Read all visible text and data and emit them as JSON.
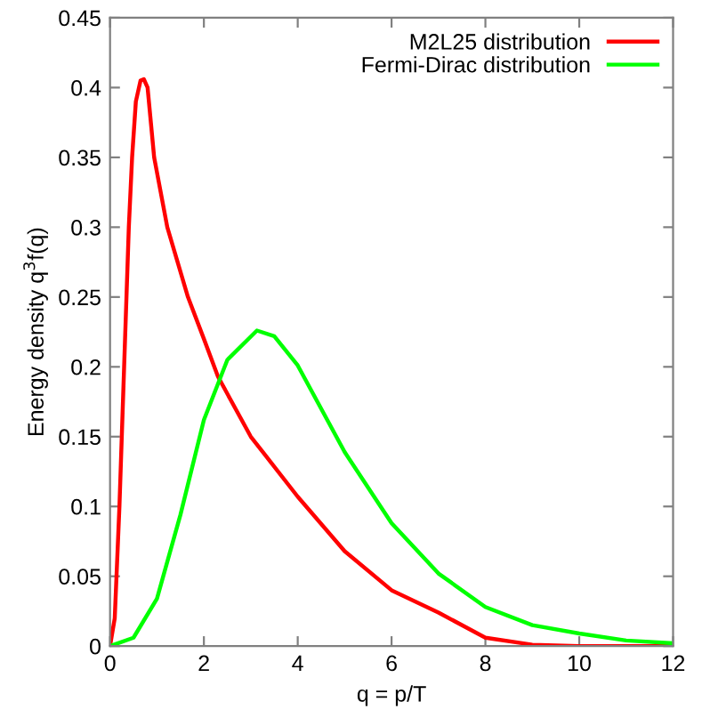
{
  "chart_data": {
    "type": "line",
    "xlabel": "q = p/T",
    "ylabel": "Energy density q$^{3}$f(q)",
    "xlim": [
      0,
      12
    ],
    "ylim": [
      0,
      0.45
    ],
    "xticks": [
      0,
      2,
      4,
      6,
      8,
      10,
      12
    ],
    "yticks": [
      0,
      0.05,
      0.1,
      0.15,
      0.2,
      0.25,
      0.3,
      0.35,
      0.4,
      0.45
    ],
    "legend": "top right",
    "grid": false,
    "series": [
      {
        "name": "M2L25 distribution",
        "color": "#ff0000",
        "x": [
          0,
          0.1,
          0.2,
          0.3,
          0.4,
          0.47,
          0.55,
          0.65,
          0.72,
          0.8,
          0.94,
          1.22,
          1.66,
          2.0,
          2.3,
          3.0,
          4.0,
          5.0,
          6.0,
          7.0,
          8.0,
          9.0,
          10.0,
          12.0
        ],
        "values": [
          0,
          0.02,
          0.1,
          0.2,
          0.3,
          0.35,
          0.39,
          0.405,
          0.406,
          0.4,
          0.35,
          0.3,
          0.25,
          0.22,
          0.193,
          0.15,
          0.107,
          0.068,
          0.04,
          0.024,
          0.006,
          0.001,
          0,
          0
        ]
      },
      {
        "name": "Fermi-Dirac distribution",
        "color": "#00ff00",
        "x": [
          0,
          0.5,
          1.0,
          1.5,
          2.0,
          2.5,
          3.13,
          3.5,
          4.0,
          5.0,
          6.0,
          7.0,
          8.0,
          9.0,
          10.0,
          11.0,
          12.0
        ],
        "values": [
          0,
          0.006,
          0.034,
          0.094,
          0.162,
          0.205,
          0.226,
          0.222,
          0.201,
          0.139,
          0.088,
          0.052,
          0.028,
          0.015,
          0.009,
          0.004,
          0.002
        ]
      }
    ]
  }
}
